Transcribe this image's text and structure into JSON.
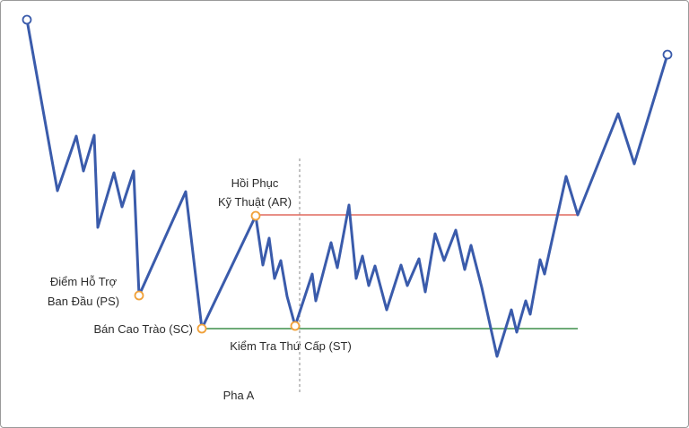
{
  "labels": {
    "ps_line1": "Điểm Hỗ Trợ",
    "ps_line2": "Ban Đầu (PS)",
    "sc": "Bán Cao Trào (SC)",
    "ar_line1": "Hồi Phục",
    "ar_line2": "Kỹ Thuật (AR)",
    "st": "Kiểm Tra Thứ Cấp (ST)",
    "phase": "Pha A"
  },
  "colors": {
    "price_line": "#3a5bab",
    "resistance_line": "#e06a5f",
    "support_line": "#3f8f4a",
    "event_marker": "#f0a13a",
    "endpoint_marker": "#3a5bab",
    "phase_divider": "#9a9a9a"
  }
}
